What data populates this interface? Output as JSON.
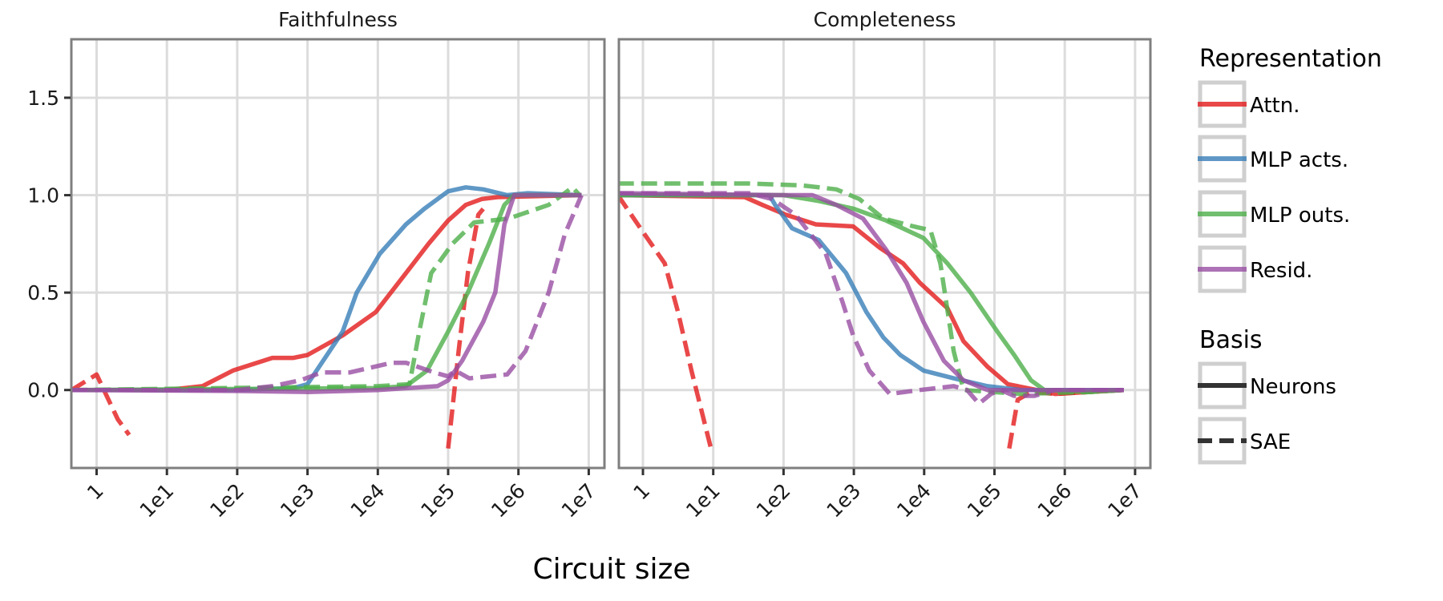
{
  "chart_data": {
    "type": "line",
    "xlabel": "Circuit size",
    "x_scale": "log",
    "xlim": [
      0.44,
      16600000
    ],
    "ylim": [
      -0.4,
      1.8
    ],
    "x_ticks": [
      1,
      10,
      100,
      1000,
      10000,
      100000,
      1000000,
      10000000
    ],
    "x_tick_labels": [
      "1",
      "1e1",
      "1e2",
      "1e3",
      "1e4",
      "1e5",
      "1e6",
      "1e7"
    ],
    "y_ticks": [
      0,
      0.5,
      1,
      1.5
    ],
    "y_tick_labels": [
      "0.0",
      "0.5",
      "1.0",
      "1.5"
    ],
    "grid": true,
    "legend_placement": "right",
    "legend": {
      "representation_title": "Representation",
      "representation": [
        {
          "label": "Attn.",
          "color": "#e41a1c"
        },
        {
          "label": "MLP acts.",
          "color": "#377eb8"
        },
        {
          "label": "MLP outs.",
          "color": "#4daf4a"
        },
        {
          "label": "Resid.",
          "color": "#984ea3"
        }
      ],
      "basis_title": "Basis",
      "basis": [
        {
          "label": "Neurons",
          "style": "solid"
        },
        {
          "label": "SAE",
          "style": "dashed"
        }
      ]
    },
    "panels": [
      {
        "title": "Faithfulness",
        "series": [
          {
            "representation": "Attn.",
            "basis": "Neurons",
            "segments": [
              [
                [
                  0.44,
                  0
                ],
                [
                  10,
                  0
                ],
                [
                  32,
                  0.02
                ],
                [
                  87,
                  0.1
                ],
                [
                  316,
                  0.165
                ],
                [
                  631,
                  0.165
                ],
                [
                  1000,
                  0.18
                ],
                [
                  3162,
                  0.28
                ],
                [
                  9330,
                  0.4
                ],
                [
                  25100,
                  0.6
                ],
                [
                  52500,
                  0.75
                ],
                [
                  100000,
                  0.87
                ],
                [
                  178000,
                  0.95
                ],
                [
                  300000,
                  0.98
                ],
                [
                  501000,
                  0.99
                ],
                [
                  7900000,
                  1.0
                ]
              ]
            ]
          },
          {
            "representation": "Attn.",
            "basis": "SAE",
            "segments": [
              [
                [
                  0.44,
                  0
                ],
                [
                  1,
                  0.08
                ],
                [
                  1.35,
                  -0.02
                ],
                [
                  2,
                  -0.15
                ],
                [
                  2.9,
                  -0.23
                ]
              ],
              [
                [
                  100000,
                  -0.3
                ],
                [
                  141000,
                  0.2
                ],
                [
                  191000,
                  0.6
                ],
                [
                  269000,
                  0.9
                ],
                [
                  316000,
                  0.93
                ]
              ]
            ]
          },
          {
            "representation": "MLP acts.",
            "basis": "Neurons",
            "segments": [
              [
                [
                  0.44,
                  0
                ],
                [
                  100,
                  0
                ],
                [
                  631,
                  0.01
                ],
                [
                  1000,
                  0.03
                ],
                [
                  3162,
                  0.3
                ],
                [
                  5010,
                  0.5
                ],
                [
                  10700,
                  0.7
                ],
                [
                  25100,
                  0.85
                ],
                [
                  45700,
                  0.93
                ],
                [
                  100000,
                  1.02
                ],
                [
                  178000,
                  1.04
                ],
                [
                  316000,
                  1.03
                ],
                [
                  692000,
                  1.0
                ],
                [
                  1350000,
                  1.01
                ],
                [
                  7900000,
                  1.0
                ]
              ]
            ]
          },
          {
            "representation": "MLP outs.",
            "basis": "Neurons",
            "segments": [
              [
                [
                  0.44,
                  0
                ],
                [
                  10000,
                  0.01
                ],
                [
                  25100,
                  0.02
                ],
                [
                  50100,
                  0.1
                ],
                [
                  100000,
                  0.3
                ],
                [
                  191000,
                  0.5
                ],
                [
                  380000,
                  0.75
                ],
                [
                  631000,
                  0.95
                ],
                [
                  871000,
                  1.0
                ],
                [
                  7900000,
                  1.0
                ]
              ]
            ]
          },
          {
            "representation": "MLP outs.",
            "basis": "SAE",
            "segments": [
              [
                [
                  0.44,
                  0
                ],
                [
                  10000,
                  0.02
                ],
                [
                  28200,
                  0.03
                ],
                [
                  38900,
                  0.3
                ],
                [
                  57500,
                  0.6
                ],
                [
                  115000,
                  0.75
                ],
                [
                  234000,
                  0.86
                ],
                [
                  724000,
                  0.88
                ],
                [
                  2690000,
                  0.95
                ],
                [
                  5890000,
                  1.04
                ],
                [
                  7400000,
                  1.0
                ]
              ]
            ]
          },
          {
            "representation": "Resid.",
            "basis": "Neurons",
            "segments": [
              [
                [
                  0.44,
                  0
                ],
                [
                  100,
                  -0.005
                ],
                [
                  1000,
                  -0.01
                ],
                [
                  10000,
                  0
                ],
                [
                  70800,
                  0.02
                ],
                [
                  100000,
                  0.05
                ],
                [
                  158000,
                  0.15
                ],
                [
                  316000,
                  0.35
                ],
                [
                  468000,
                  0.5
                ],
                [
                  631000,
                  0.85
                ],
                [
                  871000,
                  1.0
                ],
                [
                  7900000,
                  1.0
                ]
              ]
            ]
          },
          {
            "representation": "Resid.",
            "basis": "SAE",
            "segments": [
              [
                [
                  0.44,
                  0
                ],
                [
                  100,
                  0
                ],
                [
                  316,
                  0.02
                ],
                [
                  794,
                  0.05
                ],
                [
                  1585,
                  0.09
                ],
                [
                  3981,
                  0.09
                ],
                [
                  15800,
                  0.14
                ],
                [
                  25100,
                  0.14
                ],
                [
                  63100,
                  0.09
                ],
                [
                  100000,
                  0.07
                ],
                [
                  126000,
                  0.1
                ],
                [
                  200000,
                  0.06
                ],
                [
                  692000,
                  0.08
                ],
                [
                  1260000,
                  0.2
                ],
                [
                  2690000,
                  0.5
                ],
                [
                  4570000,
                  0.8
                ],
                [
                  7900000,
                  1.0
                ]
              ]
            ]
          }
        ]
      },
      {
        "title": "Completeness",
        "series": [
          {
            "representation": "Attn.",
            "basis": "Neurons",
            "segments": [
              [
                [
                  0.44,
                  1.0
                ],
                [
                  28,
                  0.99
                ],
                [
                  50,
                  0.95
                ],
                [
                  107,
                  0.9
                ],
                [
                  288,
                  0.85
                ],
                [
                  977,
                  0.84
                ],
                [
                  2340,
                  0.73
                ],
                [
                  5010,
                  0.65
                ],
                [
                  8710,
                  0.55
                ],
                [
                  21400,
                  0.42
                ],
                [
                  36300,
                  0.25
                ],
                [
                  79400,
                  0.12
                ],
                [
                  155000,
                  0.03
                ],
                [
                  398000,
                  0
                ],
                [
                  724000,
                  -0.02
                ],
                [
                  6900000,
                  0
                ]
              ]
            ]
          },
          {
            "representation": "Attn.",
            "basis": "SAE",
            "segments": [
              [
                [
                  0.44,
                  1.0
                ],
                [
                  1.05,
                  0.8
                ],
                [
                  2.04,
                  0.65
                ],
                [
                  3.16,
                  0.4
                ],
                [
                  4.9,
                  0.1
                ],
                [
                  9.3,
                  -0.3
                ]
              ],
              [
                [
                  162000,
                  -0.3
                ],
                [
                  214000,
                  -0.05
                ],
                [
                  331000,
                  -0.01
                ],
                [
                  724000,
                  -0.02
                ],
                [
                  6900000,
                  0
                ]
              ]
            ]
          },
          {
            "representation": "MLP acts.",
            "basis": "Neurons",
            "segments": [
              [
                [
                  0.44,
                  1.0
                ],
                [
                  63,
                  1.0
                ],
                [
                  76,
                  0.95
                ],
                [
                  132,
                  0.83
                ],
                [
                  316,
                  0.77
                ],
                [
                  776,
                  0.6
                ],
                [
                  1510,
                  0.4
                ],
                [
                  2630,
                  0.27
                ],
                [
                  4570,
                  0.18
                ],
                [
                  9770,
                  0.1
                ],
                [
                  26300,
                  0.06
                ],
                [
                  79400,
                  0.02
                ],
                [
                  240000,
                  0
                ],
                [
                  6900000,
                  0
                ]
              ]
            ]
          },
          {
            "representation": "MLP outs.",
            "basis": "Neurons",
            "segments": [
              [
                [
                  0.44,
                  1.0
                ],
                [
                  100,
                  1.0
                ],
                [
                  316,
                  0.97
                ],
                [
                  1000,
                  0.93
                ],
                [
                  2880,
                  0.87
                ],
                [
                  9770,
                  0.78
                ],
                [
                  21400,
                  0.65
                ],
                [
                  45700,
                  0.5
                ],
                [
                  110000,
                  0.3
                ],
                [
                  191000,
                  0.18
                ],
                [
                  331000,
                  0.05
                ],
                [
                  513000,
                  0
                ],
                [
                  2140000,
                  -0.01
                ],
                [
                  6900000,
                  0
                ]
              ]
            ]
          },
          {
            "representation": "MLP outs.",
            "basis": "SAE",
            "segments": [
              [
                [
                  0.44,
                  1.06
                ],
                [
                  32,
                  1.06
                ],
                [
                  186,
                  1.05
                ],
                [
                  562,
                  1.03
                ],
                [
                  1200,
                  0.98
                ],
                [
                  2630,
                  0.88
                ],
                [
                  7080,
                  0.84
                ],
                [
                  12300,
                  0.82
                ],
                [
                  17000,
                  0.65
                ],
                [
                  26300,
                  0.2
                ],
                [
                  36300,
                  0
                ],
                [
                  240000,
                  -0.02
                ],
                [
                  2140000,
                  -0.01
                ],
                [
                  6900000,
                  0
                ]
              ]
            ]
          },
          {
            "representation": "Resid.",
            "basis": "Neurons",
            "segments": [
              [
                [
                  0.44,
                  1.01
                ],
                [
                  100,
                  1.0
                ],
                [
                  257,
                  1.0
                ],
                [
                  562,
                  0.95
                ],
                [
                  1350,
                  0.88
                ],
                [
                  2880,
                  0.72
                ],
                [
                  5620,
                  0.55
                ],
                [
                  9770,
                  0.35
                ],
                [
                  19100,
                  0.15
                ],
                [
                  36300,
                  0.05
                ],
                [
                  79400,
                  0
                ],
                [
                  6900000,
                  0
                ]
              ]
            ]
          },
          {
            "representation": "Resid.",
            "basis": "SAE",
            "segments": [
              [
                [
                  0.44,
                  1.01
                ],
                [
                  32,
                  1.01
                ],
                [
                  69,
                  0.98
                ],
                [
                  148,
                  0.9
                ],
                [
                  398,
                  0.7
                ],
                [
                  692,
                  0.45
                ],
                [
                  977,
                  0.28
                ],
                [
                  1660,
                  0.1
                ],
                [
                  3240,
                  -0.02
                ],
                [
                  8710,
                  0
                ],
                [
                  26300,
                  0.02
                ],
                [
                  40700,
                  0
                ],
                [
                  60300,
                  -0.07
                ],
                [
                  89100,
                  -0.02
                ],
                [
                  123000,
                  0
                ],
                [
                  190000,
                  -0.03
                ],
                [
                  372000,
                  -0.03
                ],
                [
                  724000,
                  0
                ],
                [
                  6900000,
                  0
                ]
              ]
            ]
          }
        ]
      }
    ]
  }
}
